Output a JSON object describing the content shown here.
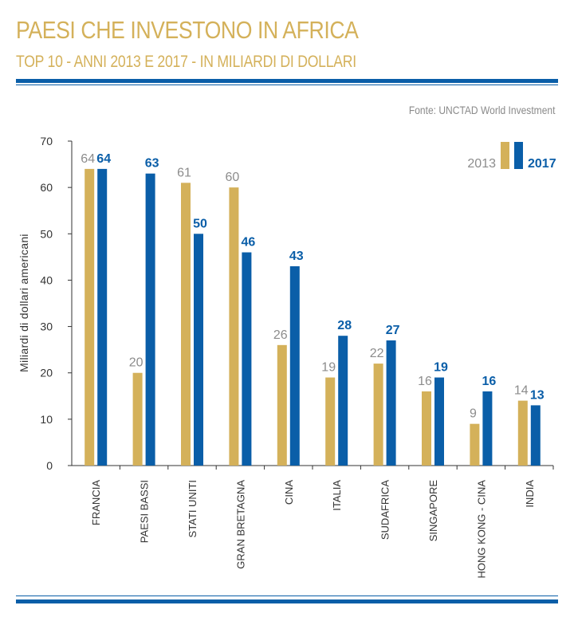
{
  "header": {
    "title": "PAESI CHE INVESTONO IN AFRICA",
    "subtitle": "TOP 10 - ANNI 2013 E 2017 - IN MILIARDI DI DOLLARI",
    "source": "Fonte: UNCTAD World Investment"
  },
  "colors": {
    "gold": "#d4b15a",
    "blue": "#0a5ea8",
    "gray_label": "#8c8c8c",
    "axis": "#333333"
  },
  "chart_data": {
    "type": "bar",
    "ylabel": "Miliardi di dollari americani",
    "ylim": [
      0,
      70
    ],
    "yticks": [
      0,
      10,
      20,
      30,
      40,
      50,
      60,
      70
    ],
    "legend_position": "top-right",
    "categories": [
      "FRANCIA",
      "PAESI BASSI",
      "STATI UNITI",
      "GRAN BRETAGNA",
      "CINA",
      "ITALIA",
      "SUDAFRICA",
      "SINGAPORE",
      "HONG KONG - CINA",
      "INDIA"
    ],
    "series": [
      {
        "name": "2013",
        "color": "#d4b15a",
        "values": [
          64,
          20,
          61,
          60,
          26,
          19,
          22,
          16,
          9,
          14
        ]
      },
      {
        "name": "2017",
        "color": "#0a5ea8",
        "values": [
          64,
          63,
          50,
          46,
          43,
          28,
          27,
          19,
          16,
          13
        ]
      }
    ]
  }
}
